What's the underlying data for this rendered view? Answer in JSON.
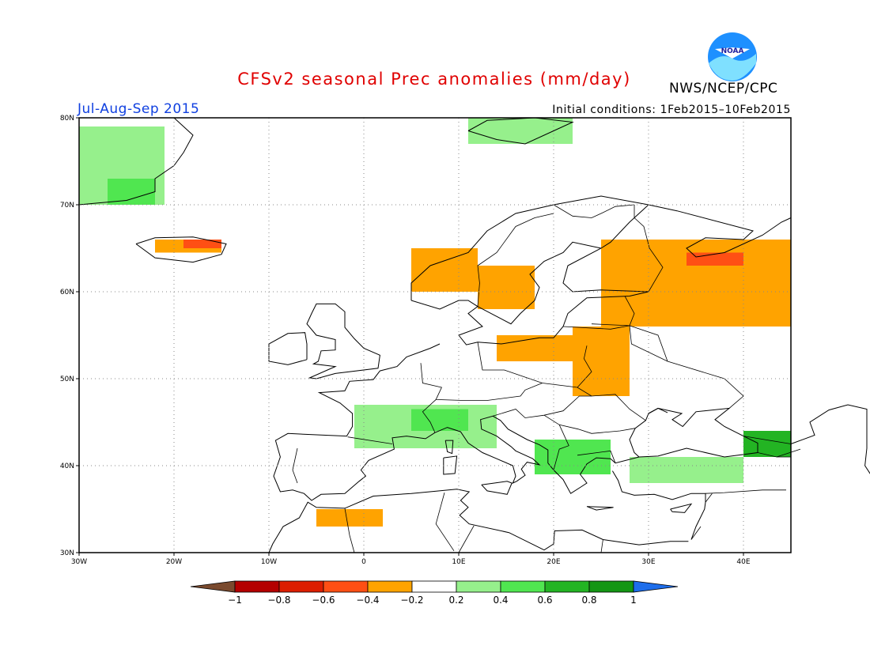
{
  "header": {
    "title": "CFSv2 seasonal Prec anomalies (mm/day)",
    "period": "Jul-Aug-Sep 2015",
    "initial_conditions": "Initial conditions: 1Feb2015–10Feb2015",
    "agency": "NWS/NCEP/CPC",
    "logo_text": "NOAA"
  },
  "map": {
    "lon_range": [
      -30,
      45
    ],
    "lat_range": [
      30,
      80
    ],
    "grid": "dotted",
    "lat_labels": [
      "80N",
      "70N",
      "60N",
      "50N",
      "40N",
      "30N"
    ],
    "lon_labels": [
      "30W",
      "20W",
      "10W",
      "0",
      "10E",
      "20E",
      "30E",
      "40E"
    ]
  },
  "legend": {
    "tick_labels": [
      "−1",
      "−0.8",
      "−0.6",
      "−0.4",
      "−0.2",
      "0.2",
      "0.4",
      "0.6",
      "0.8",
      "1"
    ],
    "bins": [
      {
        "range": "<-1",
        "color": "#7a4a2e"
      },
      {
        "range": "-1..-0.8",
        "color": "#b40000"
      },
      {
        "range": "-0.8..-0.6",
        "color": "#dc1e00"
      },
      {
        "range": "-0.6..-0.4",
        "color": "#ff4f14"
      },
      {
        "range": "-0.4..-0.2",
        "color": "#ffa300"
      },
      {
        "range": "-0.2..0.2",
        "color": "#ffffff"
      },
      {
        "range": "0.2..0.4",
        "color": "#96f08c"
      },
      {
        "range": "0.4..0.6",
        "color": "#50e650"
      },
      {
        "range": "0.6..0.8",
        "color": "#23b423"
      },
      {
        "range": "0.8..1",
        "color": "#149614"
      },
      {
        "range": ">1",
        "color": "#1e6eeb"
      }
    ]
  },
  "colors": {
    "title": "#e00000",
    "period": "#1040e0",
    "orange": "#ffa300",
    "red": "#ff4f14",
    "light_green": "#96f08c",
    "green": "#50e650",
    "dark_green": "#23b423"
  },
  "anomaly_regions": [
    {
      "name": "greenland-east",
      "value": 0.3,
      "lon": [
        -30,
        -21
      ],
      "lat": [
        70,
        79
      ]
    },
    {
      "name": "greenland-east-core",
      "value": 0.5,
      "lon": [
        -27,
        -22
      ],
      "lat": [
        70,
        73
      ]
    },
    {
      "name": "svalbard",
      "value": 0.3,
      "lon": [
        11,
        22
      ],
      "lat": [
        77,
        80
      ]
    },
    {
      "name": "iceland",
      "value": -0.4,
      "lon": [
        -22,
        -15
      ],
      "lat": [
        64.5,
        66
      ]
    },
    {
      "name": "iceland-core",
      "value": -0.6,
      "lon": [
        -19,
        -15
      ],
      "lat": [
        65,
        66
      ]
    },
    {
      "name": "norway-coast",
      "value": -0.4,
      "lon": [
        5,
        12
      ],
      "lat": [
        60,
        65
      ]
    },
    {
      "name": "sweden",
      "value": -0.4,
      "lon": [
        12,
        18
      ],
      "lat": [
        58,
        63
      ]
    },
    {
      "name": "karelia-russia",
      "value": -0.4,
      "lon": [
        25,
        45
      ],
      "lat": [
        56,
        66
      ]
    },
    {
      "name": "russia-core",
      "value": -0.6,
      "lon": [
        34,
        40
      ],
      "lat": [
        63,
        64.5
      ]
    },
    {
      "name": "central-europe",
      "value": -0.4,
      "lon": [
        14,
        22
      ],
      "lat": [
        52,
        55
      ]
    },
    {
      "name": "ukraine",
      "value": -0.4,
      "lon": [
        22,
        28
      ],
      "lat": [
        48,
        56
      ]
    },
    {
      "name": "france-alps",
      "value": 0.3,
      "lon": [
        -1,
        14
      ],
      "lat": [
        42,
        47
      ]
    },
    {
      "name": "alps-core",
      "value": 0.5,
      "lon": [
        5,
        11
      ],
      "lat": [
        44,
        46.5
      ]
    },
    {
      "name": "balkans",
      "value": 0.5,
      "lon": [
        18,
        26
      ],
      "lat": [
        39,
        43
      ]
    },
    {
      "name": "turkey",
      "value": 0.3,
      "lon": [
        28,
        40
      ],
      "lat": [
        38,
        41
      ]
    },
    {
      "name": "caucasus",
      "value": 0.7,
      "lon": [
        40,
        45
      ],
      "lat": [
        41,
        44
      ]
    },
    {
      "name": "morocco-algeria",
      "value": -0.4,
      "lon": [
        -5,
        2
      ],
      "lat": [
        33,
        35
      ]
    }
  ]
}
